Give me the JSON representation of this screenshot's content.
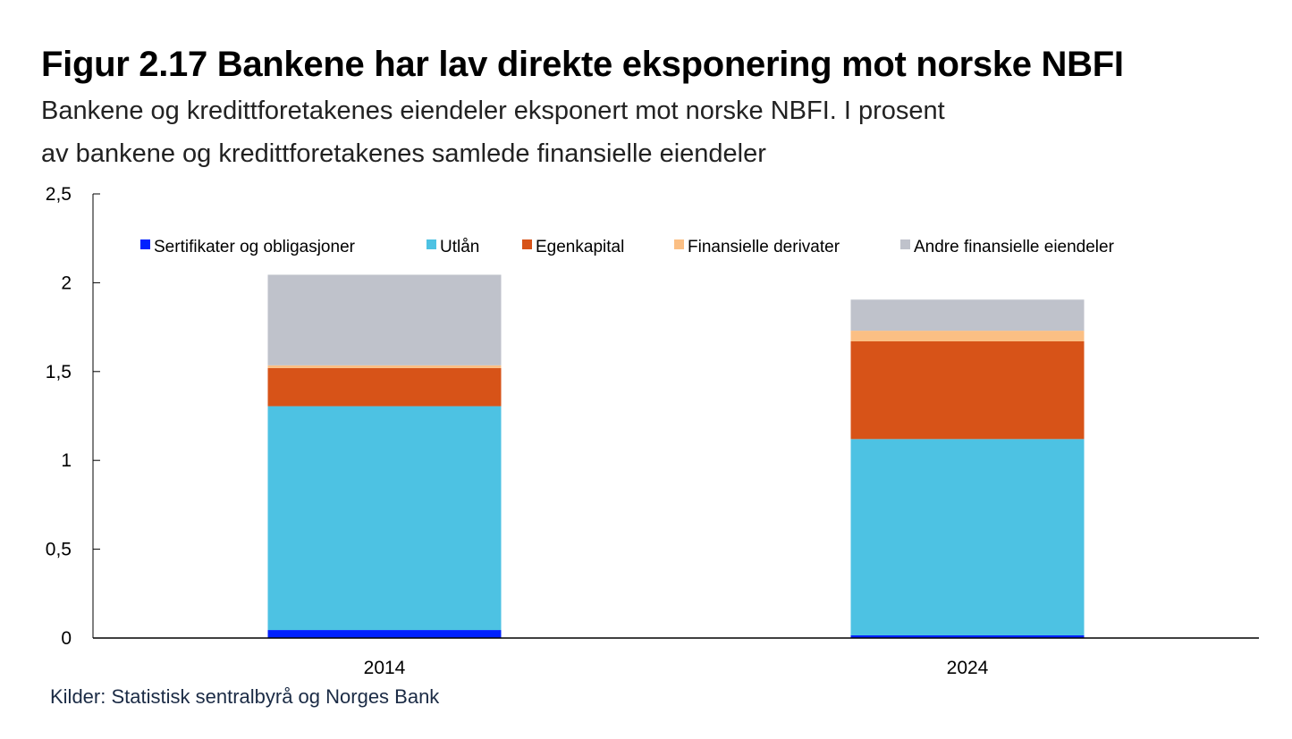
{
  "header": {
    "title": "Figur 2.17 Bankene har lav direkte eksponering mot norske NBFI",
    "subtitle_line1": "Bankene og kredittforetakenes eiendeler eksponert mot norske NBFI. I prosent",
    "subtitle_line2": "av bankene og kredittforetakenes samlede finansielle eiendeler"
  },
  "footer": {
    "source": "Kilder: Statistisk sentralbyrå og Norges Bank"
  },
  "chart_data": {
    "type": "bar",
    "stacked": true,
    "title": "Figur 2.17 Bankene har lav direkte eksponering mot norske NBFI",
    "subtitle": "Bankene og kredittforetakenes eiendeler eksponert mot norske NBFI. I prosent av bankene og kredittforetakenes samlede finansielle eiendeler",
    "xlabel": "",
    "ylabel": "",
    "categories": [
      "2014",
      "2024"
    ],
    "ylim": [
      0,
      2.5
    ],
    "yticks": [
      0,
      0.5,
      1,
      1.5,
      2,
      2.5
    ],
    "ytick_labels": [
      "0",
      "0,5",
      "1",
      "1,5",
      "2",
      "2,5"
    ],
    "grid": false,
    "legend_position": "top",
    "series": [
      {
        "name": "Sertifikater og obligasjoner",
        "color": "#0021ff",
        "values": [
          0.045,
          0.015
        ]
      },
      {
        "name": "Utlån",
        "color": "#4dc2e3",
        "values": [
          1.26,
          1.105
        ]
      },
      {
        "name": "Egenkapital",
        "color": "#d75318",
        "values": [
          0.215,
          0.55
        ]
      },
      {
        "name": "Finansielle derivater",
        "color": "#fbbf84",
        "values": [
          0.015,
          0.06
        ]
      },
      {
        "name": "Andre finansielle eiendeler",
        "color": "#bfc2cb",
        "values": [
          0.51,
          0.175
        ]
      }
    ]
  }
}
